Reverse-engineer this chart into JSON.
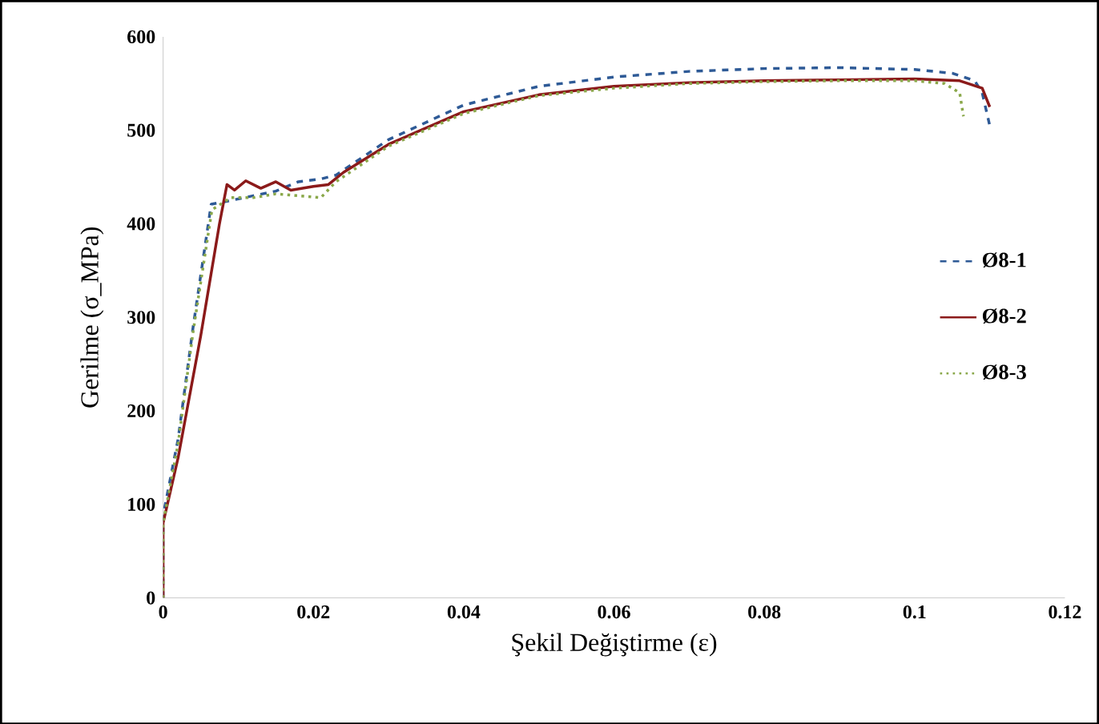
{
  "chart_data": {
    "type": "line",
    "xlabel": "Şekil Değiştirme (ε)",
    "ylabel": "Gerilme (σ_MPa)",
    "xlim": [
      0,
      0.12
    ],
    "xticks": [
      0,
      0.02,
      0.04,
      0.06,
      0.08,
      0.1,
      0.12
    ],
    "ylim": [
      0,
      600
    ],
    "yticks": [
      0,
      100,
      200,
      300,
      400,
      500,
      600
    ],
    "grid": false,
    "legend": "right",
    "series": [
      {
        "name": "Ø8-1",
        "color": "#2e5a96",
        "line_style": "dashed",
        "x": [
          0,
          0,
          0.002,
          0.004,
          0.0064,
          0.009,
          0.012,
          0.015,
          0.018,
          0.021,
          0.023,
          0.03,
          0.04,
          0.05,
          0.06,
          0.07,
          0.08,
          0.09,
          0.1,
          0.105,
          0.108,
          0.109,
          0.11
        ],
        "values": [
          0,
          88,
          170,
          290,
          421,
          425,
          430,
          435,
          445,
          448,
          452,
          490,
          527,
          547,
          557,
          563,
          566,
          567,
          565,
          561,
          553,
          540,
          505
        ]
      },
      {
        "name": "Ø8-2",
        "color": "#8b1a1a",
        "line_style": "solid",
        "x": [
          0,
          0,
          0.002,
          0.005,
          0.0075,
          0.0085,
          0.0095,
          0.011,
          0.013,
          0.015,
          0.017,
          0.02,
          0.022,
          0.024,
          0.03,
          0.04,
          0.05,
          0.06,
          0.07,
          0.08,
          0.09,
          0.1,
          0.106,
          0.109,
          0.11
        ],
        "values": [
          0,
          80,
          150,
          280,
          400,
          442,
          436,
          446,
          438,
          445,
          436,
          440,
          442,
          455,
          485,
          520,
          538,
          547,
          551,
          553,
          554,
          555,
          553,
          545,
          525
        ]
      },
      {
        "name": "Ø8-3",
        "color": "#8aa84a",
        "line_style": "dotted",
        "x": [
          0,
          0,
          0.002,
          0.004,
          0.0065,
          0.009,
          0.012,
          0.015,
          0.018,
          0.021,
          0.023,
          0.03,
          0.04,
          0.05,
          0.06,
          0.07,
          0.08,
          0.09,
          0.1,
          0.104,
          0.106,
          0.1065
        ],
        "values": [
          0,
          80,
          165,
          285,
          415,
          428,
          428,
          432,
          430,
          428,
          445,
          483,
          518,
          537,
          545,
          550,
          552,
          553,
          553,
          550,
          540,
          515
        ]
      }
    ]
  }
}
